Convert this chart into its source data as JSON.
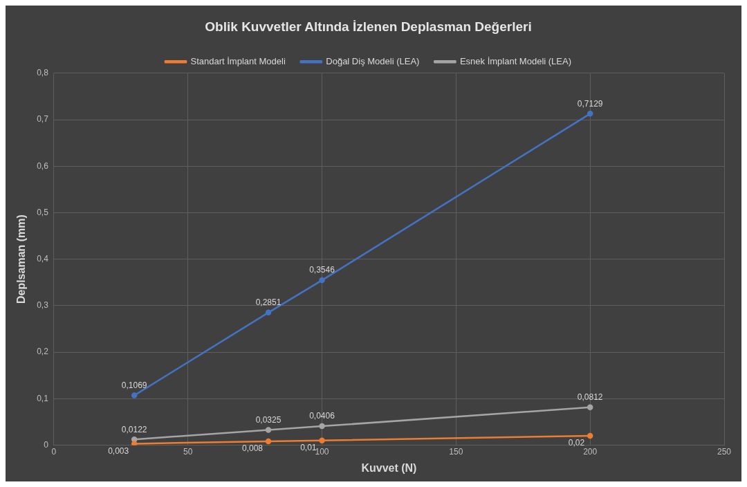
{
  "chart_data": {
    "type": "line",
    "title": "Oblik Kuvvetler Altında İzlenen Deplasman Değerleri",
    "xlabel": "Kuvvet (N)",
    "ylabel": "Deplsaman (mm)",
    "x": [
      30,
      80,
      100,
      200
    ],
    "series": [
      {
        "name": "Standart İmplant Modeli",
        "color": "#ed7d31",
        "values": [
          0.003,
          0.008,
          0.01,
          0.02
        ],
        "value_labels": [
          "0,003",
          "0,008",
          "0,01",
          "0,02"
        ]
      },
      {
        "name": "Doğal Diş Modeli (LEA)",
        "color": "#4472c4",
        "values": [
          0.1069,
          0.2851,
          0.3546,
          0.7129
        ],
        "value_labels": [
          "0,1069",
          "0,2851",
          "0,3546",
          "0,7129"
        ]
      },
      {
        "name": "Esnek İmplant Modeli (LEA)",
        "color": "#a5a5a5",
        "values": [
          0.0122,
          0.0325,
          0.0406,
          0.0812
        ],
        "value_labels": [
          "0,0122",
          "0,0325",
          "0,0406",
          "0,0812"
        ]
      }
    ],
    "xlim": [
      0,
      250
    ],
    "xticks": [
      0,
      50,
      100,
      150,
      200,
      250
    ],
    "ylim": [
      0,
      0.8
    ],
    "yticks": [
      0,
      {
        "value": 0.1,
        "label": "0,1"
      },
      {
        "value": 0.2,
        "label": "0,2"
      },
      {
        "value": 0.3,
        "label": "0,3"
      },
      {
        "value": 0.4,
        "label": "0,4"
      },
      {
        "value": 0.5,
        "label": "0,5"
      },
      {
        "value": 0.6,
        "label": "0,6"
      },
      {
        "value": 0.7,
        "label": "0,7"
      },
      {
        "value": 0.8,
        "label": "0,8"
      }
    ],
    "grid": true,
    "legend": "top",
    "marker": "circle",
    "line_style": "solid"
  }
}
